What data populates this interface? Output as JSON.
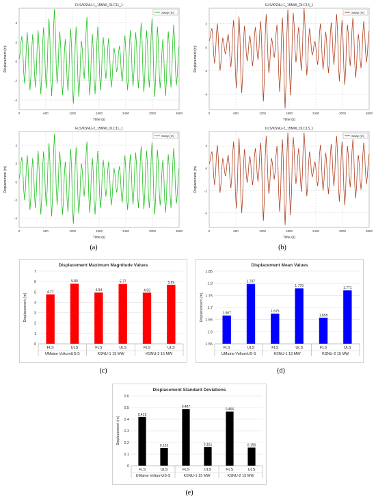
{
  "captions": [
    "(a)",
    "(b)",
    "(c)",
    "(d)",
    "(e)"
  ],
  "time_series": [
    {
      "title": "FLS/KSNU-1_15MW_DLC11_1",
      "legend": "Sway (m)",
      "xlabel": "Time (s)",
      "ylabel": "Displacement (m)",
      "color": "#21c021",
      "xlim": [
        0,
        3600
      ],
      "ylim": [
        -5,
        5.5
      ],
      "xticks": [
        0,
        600,
        1200,
        1800,
        2400,
        3000,
        3600
      ],
      "yticks": [
        -4,
        -2,
        0,
        2,
        4
      ],
      "peaks": [
        0.2,
        2.6,
        -2.3,
        3.0,
        -3.0,
        2.8,
        -2.7,
        3.2,
        -3.4,
        3.5,
        -2.8,
        4.4,
        -3.6,
        5.4,
        -2.3,
        3.1,
        -3.5,
        2.3,
        -3.1,
        3.4,
        -4.4,
        3.6,
        -3.7,
        2.1,
        -1.8,
        4.6,
        -3.5,
        2.8,
        -3.4,
        3.6,
        -3.0,
        2.5,
        -1.8,
        2.4,
        -2.7,
        1.4,
        -1.1,
        1.6,
        -2.1,
        2.7,
        -3.0,
        3.2,
        -2.6,
        3.0,
        -2.8,
        4.0,
        -3.2,
        3.2,
        -2.7,
        4.4,
        -3.7,
        3.6,
        -2.8,
        2.3,
        -3.6,
        3.1,
        -2.7,
        3.8,
        -2.5,
        1.6
      ]
    },
    {
      "title": "ULS/KSNU-1_15MW_DLC13_1",
      "legend": "Sway (m)",
      "xlabel": "Time (s)",
      "ylabel": "Displacement (m)",
      "color": "#b04020",
      "xlim": [
        0,
        3600
      ],
      "ylim": [
        -5.3,
        3.3
      ],
      "xticks": [
        0,
        600,
        1200,
        1800,
        2400,
        3000,
        3600
      ],
      "yticks": [
        -4,
        -2,
        0,
        2
      ],
      "peaks": [
        0.5,
        1.6,
        -1.4,
        2.0,
        -2.0,
        0.8,
        -0.6,
        1.1,
        -1.7,
        2.3,
        -3.5,
        2.6,
        -3.9,
        1.8,
        -1.2,
        1.0,
        -1.6,
        1.7,
        -1.1,
        2.2,
        -4.6,
        2.8,
        -2.2,
        0.8,
        -0.9,
        1.9,
        -3.8,
        2.5,
        -5.2,
        3.2,
        -4.1,
        2.9,
        -1.3,
        1.7,
        -2.0,
        3.3,
        -2.4,
        1.6,
        -0.7,
        0.5,
        -1.5,
        2.0,
        -1.9,
        1.3,
        -2.2,
        2.1,
        -1.5,
        2.8,
        -2.9,
        2.3,
        -3.2,
        1.9,
        -1.6,
        2.5,
        -2.6,
        1.1,
        -1.8,
        2.2,
        -1.3,
        1.4
      ]
    },
    {
      "title": "FLS/KSNU-2_15MW_DLC11_1",
      "legend": "Sway (m)",
      "xlabel": "Time (s)",
      "ylabel": "Displacement (m)",
      "color": "#21c021",
      "xlim": [
        0,
        3600
      ],
      "ylim": [
        -5,
        5.5
      ],
      "xticks": [
        0,
        600,
        1200,
        1800,
        2400,
        3000,
        3600
      ],
      "yticks": [
        -4,
        -2,
        0,
        2,
        4
      ],
      "peaks": [
        0.3,
        2.7,
        -2.0,
        2.9,
        -3.1,
        2.6,
        -2.9,
        3.4,
        -3.6,
        3.3,
        -2.7,
        4.2,
        -3.8,
        5.2,
        -2.5,
        3.3,
        -3.6,
        2.2,
        -3.3,
        3.6,
        -4.6,
        3.8,
        -3.5,
        2.0,
        -1.6,
        4.4,
        -3.4,
        2.6,
        -3.6,
        3.4,
        -2.9,
        2.4,
        -1.6,
        2.2,
        -2.6,
        1.5,
        -1.2,
        1.7,
        -2.3,
        2.9,
        -3.1,
        3.0,
        -2.5,
        3.2,
        -2.9,
        3.9,
        -3.0,
        3.4,
        -2.9,
        4.3,
        -3.6,
        3.5,
        -2.6,
        2.4,
        -3.4,
        3.0,
        -2.9,
        3.7,
        -2.4,
        1.5
      ]
    },
    {
      "title": "ULS/KSNU-2_15MW_DLC13_1",
      "legend": "Sway (m)",
      "xlabel": "Time (s)",
      "ylabel": "Displacement (m)",
      "color": "#b04020",
      "xlim": [
        0,
        3600
      ],
      "ylim": [
        -5.3,
        3.3
      ],
      "xticks": [
        0,
        600,
        1200,
        1800,
        2400,
        3000,
        3600
      ],
      "yticks": [
        -4,
        -2,
        0,
        2
      ],
      "peaks": [
        0.4,
        1.5,
        -1.5,
        2.1,
        -2.2,
        0.9,
        -0.7,
        1.2,
        -1.8,
        2.4,
        -3.6,
        2.7,
        -4.0,
        1.7,
        -1.3,
        1.1,
        -1.5,
        1.8,
        -1.2,
        2.3,
        -4.7,
        2.9,
        -2.3,
        0.9,
        -1.0,
        2.0,
        -3.9,
        2.6,
        -5.1,
        3.2,
        -4.2,
        2.8,
        -1.4,
        1.8,
        -2.1,
        3.2,
        -2.5,
        1.5,
        -0.8,
        0.6,
        -1.6,
        2.1,
        -2.0,
        1.4,
        -2.3,
        2.2,
        -1.6,
        2.9,
        -3.0,
        2.4,
        -3.3,
        2.0,
        -1.7,
        2.6,
        -2.7,
        1.2,
        -1.9,
        2.3,
        -1.4,
        1.3
      ]
    }
  ],
  "chart_data": [
    {
      "type": "bar",
      "title": "Displacement Maximum Magnitude Values",
      "ylabel": "Displacement (m)",
      "ylim": [
        0,
        7
      ],
      "yticks": [
        0,
        1,
        2,
        3,
        4,
        5,
        6,
        7
      ],
      "color": "#ff0000",
      "groups": [
        "UMaine VolturnUS-S",
        "KSNU-1 15 MW",
        "KSNU-2 15 MW"
      ],
      "categories": [
        "FLS",
        "ULS",
        "FLS",
        "ULS",
        "FLS",
        "ULS"
      ],
      "values": [
        4.77,
        5.8,
        4.94,
        5.77,
        4.93,
        5.69
      ],
      "labels": [
        "4.77",
        "5.80",
        "4.94",
        "5.77",
        "4.93",
        "5.69"
      ]
    },
    {
      "type": "bar",
      "title": "Displacement Mean Values",
      "ylabel": "Displacement (m)",
      "ylim": [
        1.55,
        1.85
      ],
      "yticks": [
        1.55,
        1.6,
        1.65,
        1.7,
        1.75,
        1.8,
        1.85
      ],
      "color": "#0000ff",
      "groups": [
        "UMaine VolturnUS-S",
        "KSNU-1 15 MW",
        "KSNU-2 15 MW"
      ],
      "categories": [
        "FLS",
        "ULS",
        "FLS",
        "ULS",
        "FLS",
        "ULS"
      ],
      "values": [
        1.667,
        1.797,
        1.675,
        1.779,
        1.658,
        1.771
      ],
      "labels": [
        "1.667",
        "1.797",
        "1.675",
        "1.779",
        "1.658",
        "1.771"
      ]
    },
    {
      "type": "bar",
      "title": "Displacement Standard Deviations",
      "ylabel": "Displacement (m)",
      "ylim": [
        0,
        0.6
      ],
      "yticks": [
        0,
        0.1,
        0.2,
        0.3,
        0.4,
        0.5,
        0.6
      ],
      "color": "#000000",
      "groups": [
        "UMaine VolturnUS-S",
        "KSNU-1 15 MW",
        "KSNU-2 15 MW"
      ],
      "categories": [
        "FLS",
        "ULS",
        "FLS",
        "ULS",
        "FLS",
        "ULS"
      ],
      "values": [
        0.419,
        0.153,
        0.487,
        0.161,
        0.466,
        0.156
      ],
      "labels": [
        "0.419",
        "0.153",
        "0.487",
        "0.161",
        "0.466",
        "0.156"
      ]
    }
  ]
}
